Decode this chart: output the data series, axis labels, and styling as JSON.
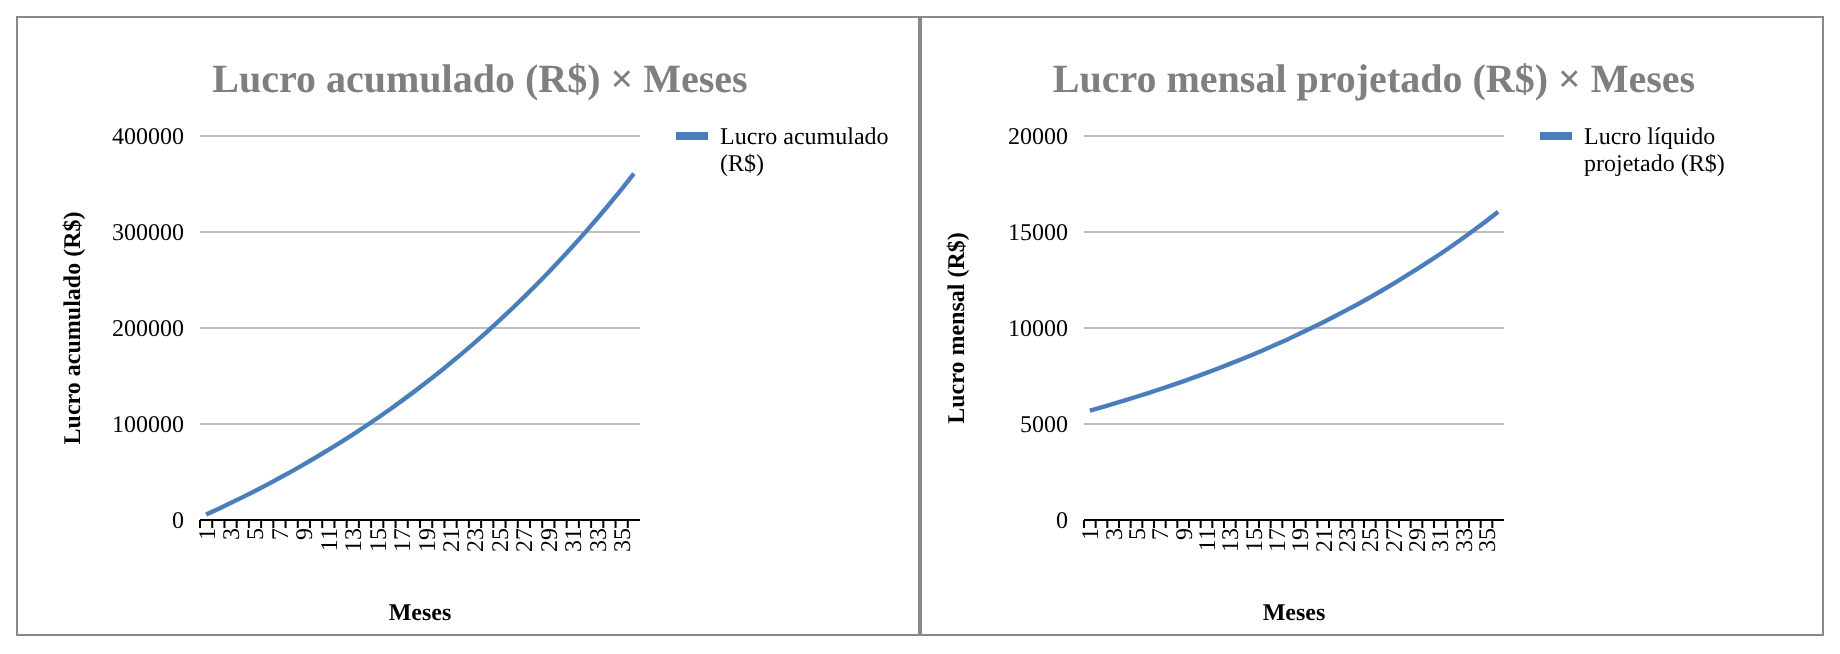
{
  "chart_data": [
    {
      "type": "line",
      "title": "Lucro acumulado (R$) × Meses",
      "xlabel": "Meses",
      "ylabel": "Lucro acumulado (R$)",
      "categories": [
        "1",
        null,
        "3",
        null,
        "5",
        null,
        "7",
        null,
        "9",
        null,
        "11",
        null,
        "13",
        null,
        "15",
        null,
        "17",
        null,
        "19",
        null,
        "21",
        null,
        "23",
        null,
        "25",
        null,
        "27",
        null,
        "29",
        null,
        "31",
        null,
        "33",
        null,
        "35",
        null
      ],
      "ylim": [
        0,
        400000
      ],
      "yticks": [
        0,
        100000,
        200000,
        300000,
        400000
      ],
      "grid": "y",
      "legend": "right",
      "marker": "none",
      "series": [
        {
          "name": "Lucro acumulado (R$)",
          "color": "#4a7ebb",
          "values": [
            5700,
            11570,
            17620,
            23850,
            30270,
            36880,
            43690,
            50700,
            57920,
            65360,
            73020,
            80910,
            89040,
            97410,
            106030,
            114910,
            124060,
            133480,
            143190,
            153190,
            163490,
            174100,
            185030,
            196280,
            207870,
            219810,
            232110,
            244780,
            257830,
            271270,
            285110,
            299370,
            314060,
            329190,
            344770,
            360820
          ]
        }
      ]
    },
    {
      "type": "line",
      "title": "Lucro mensal projetado (R$) × Meses",
      "xlabel": "Meses",
      "ylabel": "Lucro mensal (R$)",
      "categories": [
        "1",
        null,
        "3",
        null,
        "5",
        null,
        "7",
        null,
        "9",
        null,
        "11",
        null,
        "13",
        null,
        "15",
        null,
        "17",
        null,
        "19",
        null,
        "21",
        null,
        "23",
        null,
        "25",
        null,
        "27",
        null,
        "29",
        null,
        "31",
        null,
        "33",
        null,
        "35",
        null
      ],
      "ylim": [
        0,
        20000
      ],
      "yticks": [
        0,
        5000,
        10000,
        15000,
        20000
      ],
      "grid": "y",
      "legend": "right",
      "marker": "none",
      "series": [
        {
          "name": "Lucro líquido projetado (R$)",
          "color": "#4a7ebb",
          "values": [
            5700,
            5870,
            6050,
            6230,
            6420,
            6610,
            6810,
            7010,
            7220,
            7440,
            7660,
            7890,
            8130,
            8370,
            8620,
            8880,
            9150,
            9420,
            9710,
            10000,
            10300,
            10610,
            10930,
            11250,
            11590,
            11940,
            12300,
            12670,
            13050,
            13440,
            13840,
            14260,
            14690,
            15130,
            15580,
            16050
          ]
        }
      ]
    }
  ]
}
